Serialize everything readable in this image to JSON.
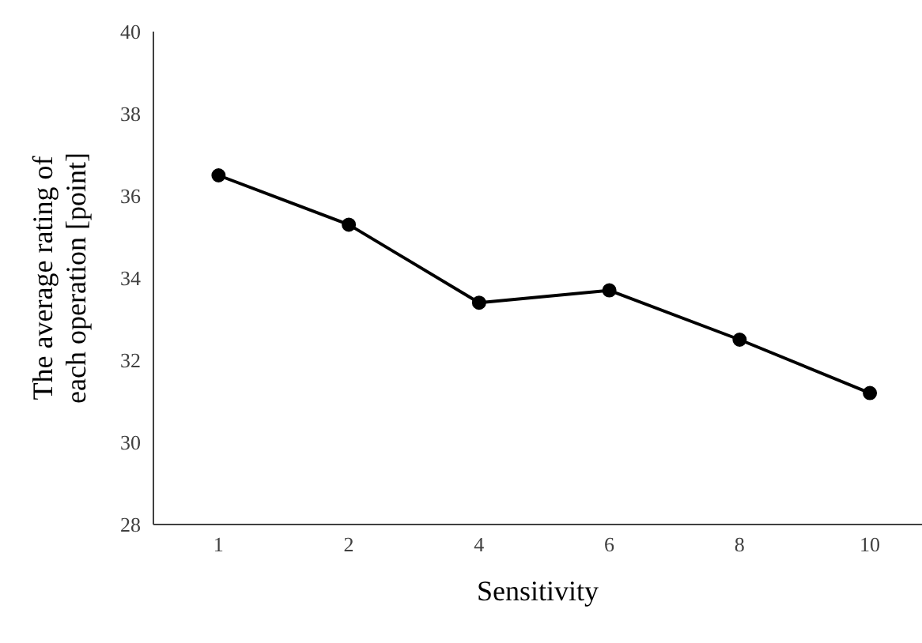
{
  "chart_data": {
    "type": "line",
    "xlabel": "Sensitivity",
    "ylabel": "The average rating of each operation [point]",
    "categories": [
      "1",
      "2",
      "4",
      "6",
      "8",
      "10"
    ],
    "series": [
      {
        "color": "#000000",
        "values": [
          36.5,
          35.3,
          33.4,
          33.7,
          32.5,
          31.2
        ]
      }
    ],
    "ylim": [
      28,
      40
    ],
    "yticks": [
      28,
      30,
      32,
      34,
      36,
      38,
      40
    ],
    "grid": false,
    "legend": false,
    "marker": "circle",
    "line_style": "solid"
  }
}
